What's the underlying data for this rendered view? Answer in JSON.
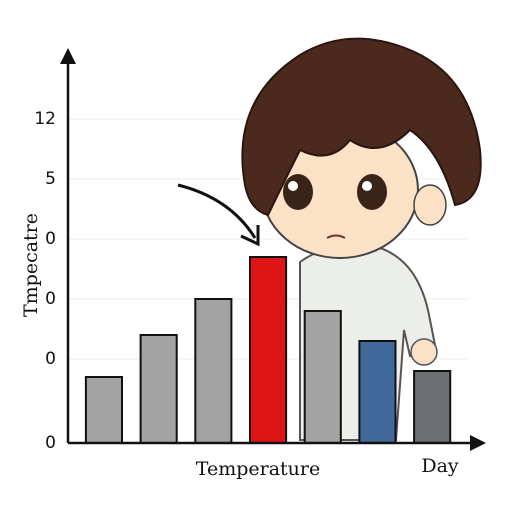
{
  "chart_data": {
    "type": "bar",
    "ylabel": "Tmpecatre",
    "xlabel": "Temperature",
    "xlabel_right": "Day",
    "categories": [
      null,
      null,
      null,
      null,
      null,
      null,
      null
    ],
    "values": [
      1.1,
      1.8,
      2.4,
      3.1,
      2.2,
      1.7,
      1.2
    ],
    "colors": [
      "#a3a3a3",
      "#a3a3a3",
      "#a3a3a3",
      "#df1414",
      "#a3a3a3",
      "#41699a",
      "#6c7070"
    ],
    "ylim": [
      0,
      6.5
    ],
    "yticks": [
      0,
      {
        "value": 1.4,
        "label": "0"
      },
      {
        "value": 2.4,
        "label": "0"
      },
      {
        "value": 3.4,
        "label": "0"
      },
      {
        "value": 4.4,
        "label": "5"
      },
      {
        "value": 5.4,
        "label": "12"
      }
    ],
    "grid": true
  }
}
